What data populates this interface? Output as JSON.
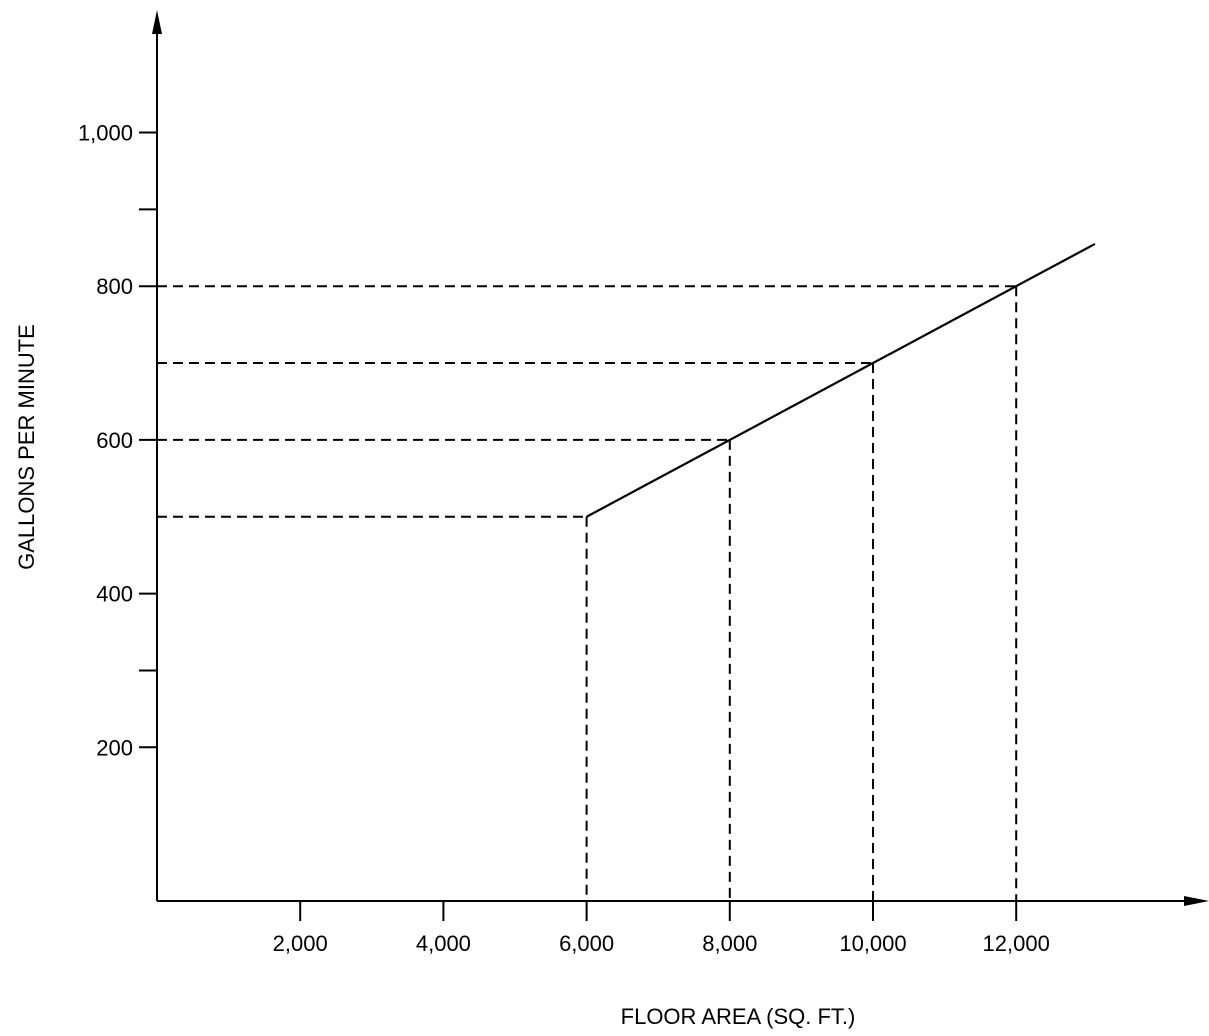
{
  "chart_data": {
    "type": "line",
    "title": "",
    "xlabel": "FLOOR AREA (SQ. FT.)",
    "ylabel": "GALLONS PER MINUTE",
    "x_ticks": [
      {
        "value": 2000,
        "label": "2,000"
      },
      {
        "value": 4000,
        "label": "4,000"
      },
      {
        "value": 6000,
        "label": "6,000"
      },
      {
        "value": 8000,
        "label": "8,000"
      },
      {
        "value": 10000,
        "label": "10,000"
      },
      {
        "value": 12000,
        "label": "12,000"
      }
    ],
    "y_ticks": [
      {
        "value": 200,
        "label": "200"
      },
      {
        "value": 300,
        "label": ""
      },
      {
        "value": 400,
        "label": "400"
      },
      {
        "value": 600,
        "label": "600"
      },
      {
        "value": 800,
        "label": "800"
      },
      {
        "value": 900,
        "label": ""
      },
      {
        "value": 1000,
        "label": "1,000"
      }
    ],
    "series": [
      {
        "x": [
          6000,
          13100
        ],
        "y": [
          500,
          855
        ]
      }
    ],
    "reference_points": [
      {
        "x": 6000,
        "y": 500
      },
      {
        "x": 8000,
        "y": 600
      },
      {
        "x": 10000,
        "y": 700
      },
      {
        "x": 12000,
        "y": 800
      }
    ],
    "xlim": [
      0,
      14500
    ],
    "ylim": [
      0,
      1070
    ],
    "grid": false,
    "legend": "none"
  }
}
